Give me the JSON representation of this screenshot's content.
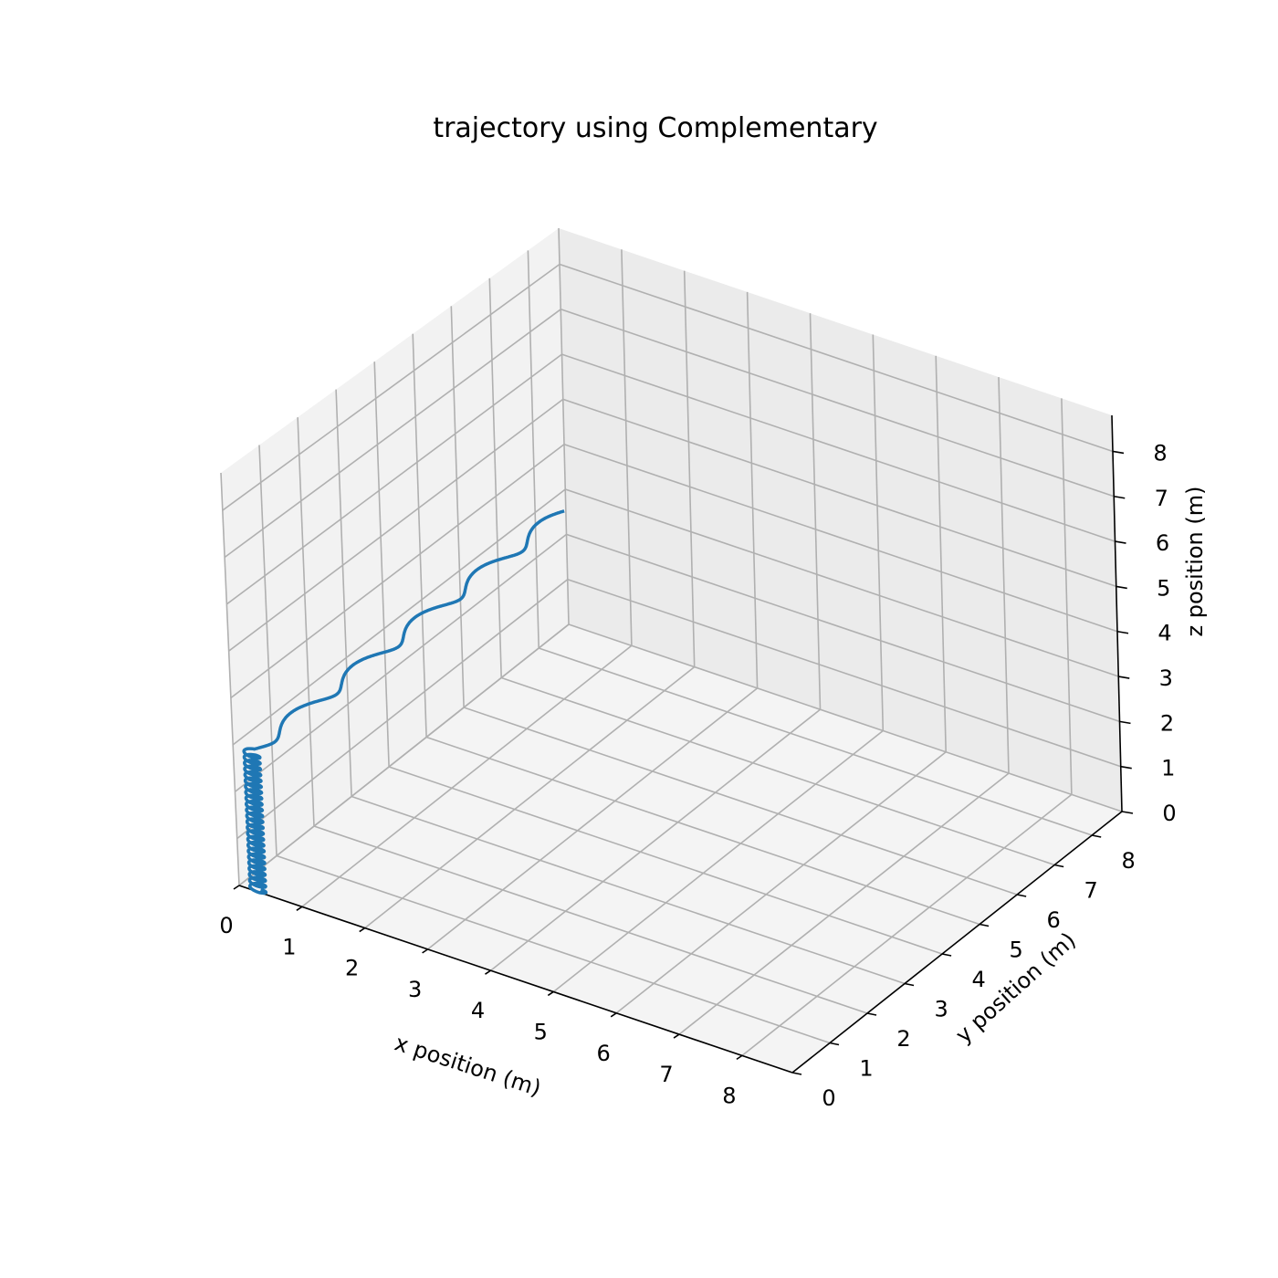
{
  "chart_data": {
    "type": "line",
    "projection": "3d",
    "title": "trajectory using Complementary",
    "xlabel": "x position (m)",
    "ylabel": "y position (m)",
    "zlabel": "z position (m)",
    "xlim": [
      0,
      8.8
    ],
    "ylim": [
      0,
      8.8
    ],
    "zlim": [
      0,
      8.8
    ],
    "x_ticks": [
      "0",
      "1",
      "2",
      "3",
      "4",
      "5",
      "6",
      "7",
      "8"
    ],
    "y_ticks": [
      "0",
      "1",
      "2",
      "3",
      "4",
      "5",
      "6",
      "7",
      "8"
    ],
    "z_ticks": [
      "0",
      "1",
      "2",
      "3",
      "4",
      "5",
      "6",
      "7",
      "8"
    ],
    "grid": true,
    "legend": "none",
    "series": [
      {
        "color": "#1f77b4",
        "segments": [
          {
            "from": [
              0.3,
              0.0,
              0.0
            ],
            "to": [
              0.3,
              0.0,
              3.0
            ],
            "loops": 24,
            "amplitude": 0.12
          },
          {
            "from": [
              0.3,
              0.0,
              3.0
            ],
            "to": [
              0.3,
              8.2,
              3.0
            ],
            "loops": 5,
            "amplitude": 0.12
          }
        ]
      }
    ]
  },
  "colors": {
    "pane_left": "#f2f2f2",
    "pane_back": "#ebebeb",
    "pane_floor": "#f4f4f4",
    "series": "#1f77b4"
  }
}
